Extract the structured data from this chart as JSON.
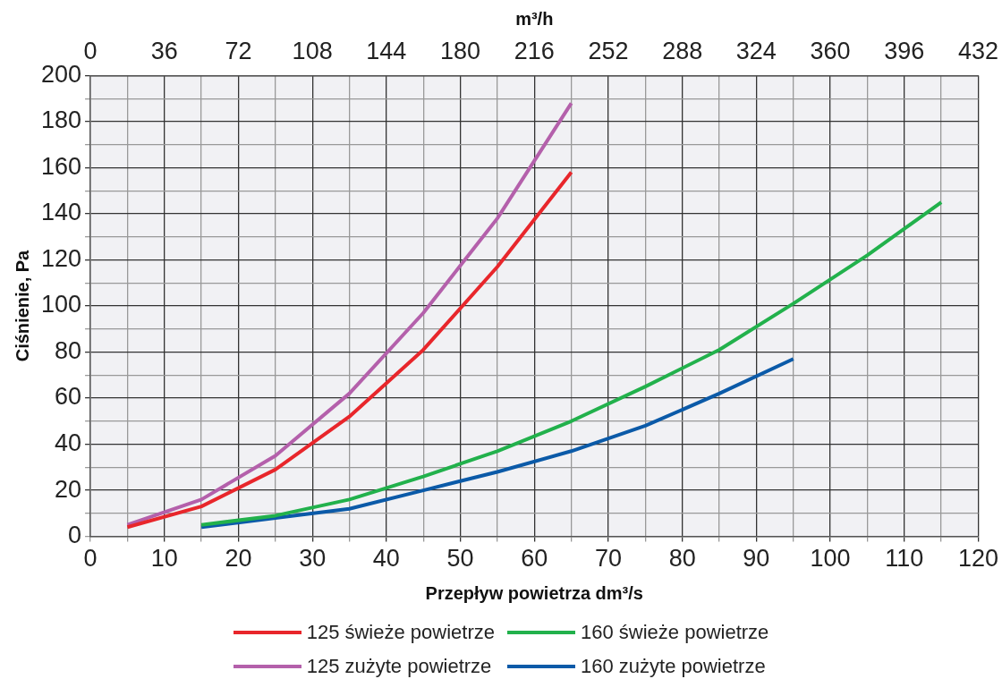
{
  "chart_data": {
    "type": "line",
    "xlabel": "Przepływ powietrza dm³/s",
    "ylabel": "Ciśnienie, Pa",
    "x2label": "m³/h",
    "xlim": [
      0,
      120
    ],
    "xticks": [
      0,
      {
        "value": 5,
        "label": null
      },
      10,
      {
        "value": 15,
        "label": null
      },
      20,
      {
        "value": 25,
        "label": null
      },
      30,
      {
        "value": 35,
        "label": null
      },
      40,
      {
        "value": 45,
        "label": null
      },
      50,
      {
        "value": 55,
        "label": null
      },
      60,
      {
        "value": 65,
        "label": null
      },
      70,
      {
        "value": 75,
        "label": null
      },
      80,
      {
        "value": 85,
        "label": null
      },
      90,
      {
        "value": 95,
        "label": null
      },
      100,
      {
        "value": 105,
        "label": null
      },
      110,
      {
        "value": 115,
        "label": null
      },
      120
    ],
    "x2lim": [
      0,
      432
    ],
    "x2ticks": [
      0,
      36,
      72,
      108,
      144,
      180,
      216,
      252,
      288,
      324,
      360,
      396,
      432
    ],
    "ylim": [
      0,
      200
    ],
    "yticks": [
      0,
      {
        "value": 10,
        "label": null
      },
      20,
      {
        "value": 30,
        "label": null
      },
      40,
      {
        "value": 50,
        "label": null
      },
      60,
      {
        "value": 70,
        "label": null
      },
      80,
      {
        "value": 90,
        "label": null
      },
      100,
      {
        "value": 110,
        "label": null
      },
      120,
      {
        "value": 130,
        "label": null
      },
      140,
      {
        "value": 150,
        "label": null
      },
      160,
      {
        "value": 170,
        "label": null
      },
      180,
      {
        "value": 190,
        "label": null
      },
      200
    ],
    "grid": true,
    "legend": "bottom",
    "marker": "none",
    "line_style": "solid",
    "series": [
      {
        "name": "125 świeże powietrze",
        "color": "#e8262b",
        "x": [
          5,
          15,
          25,
          35,
          45,
          55,
          65
        ],
        "values": [
          4,
          13,
          29,
          52,
          81,
          117,
          158
        ]
      },
      {
        "name": "125 zużyte powietrze",
        "color": "#b460ab",
        "x": [
          5,
          15,
          25,
          35,
          45,
          55,
          65
        ],
        "values": [
          5,
          16,
          35,
          62,
          97,
          138,
          188
        ]
      },
      {
        "name": "160 świeże powietrze",
        "color": "#22b14c",
        "x": [
          15,
          25,
          35,
          45,
          55,
          65,
          75,
          85,
          95,
          105,
          115
        ],
        "values": [
          5,
          9,
          16,
          26,
          37,
          50,
          65,
          81,
          101,
          122,
          145
        ]
      },
      {
        "name": "160 zużyte powietrze",
        "color": "#0b5aa8",
        "x": [
          15,
          25,
          35,
          45,
          55,
          65,
          75,
          85,
          95
        ],
        "values": [
          4,
          8,
          12,
          20,
          28,
          37,
          48,
          62,
          77
        ]
      }
    ]
  }
}
